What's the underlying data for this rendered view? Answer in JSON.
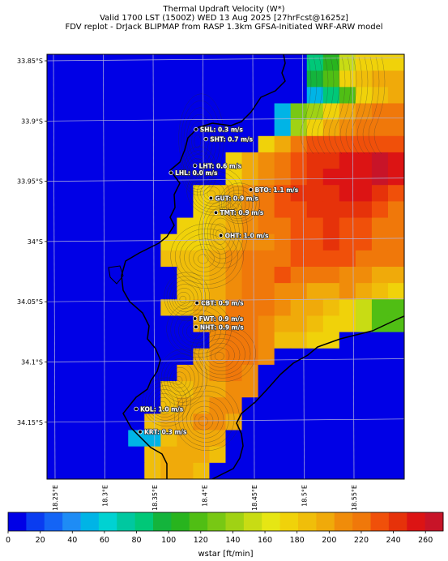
{
  "title": {
    "line1": "Thermal Updraft Velocity (W*)",
    "line2": "Valid 1700 LST (1500Z) WED 13 Aug 2025 [27hrFcst@1625z]",
    "line3": "FDV replot - DrJack BLIPMAP from RASP 1.3km GFSA-Initiated WRF-ARW model"
  },
  "lat_labels": [
    "33.85°S",
    "33.9°S",
    "33.95°S",
    "34°S",
    "34.05°S",
    "34.1°S",
    "34.15°S"
  ],
  "lon_labels": [
    "18.25°E",
    "18.3°E",
    "18.35°E",
    "18.4°E",
    "18.45°E",
    "18.5°E",
    "18.55°E"
  ],
  "stations": [
    {
      "id": "SHL",
      "label": "SHL: 0.3 m/s",
      "lat": -33.907,
      "lon": 18.393
    },
    {
      "id": "SHT",
      "label": "SHT: 0.7 m/s",
      "lat": -33.915,
      "lon": 18.403
    },
    {
      "id": "LHT",
      "label": "LHT: 0.6 m/s",
      "lat": -33.937,
      "lon": 18.392
    },
    {
      "id": "LHL",
      "label": "LHL: 0.0 m/s",
      "lat": -33.943,
      "lon": 18.368
    },
    {
      "id": "BTO",
      "label": "BTO: 1.1 m/s",
      "lat": -33.957,
      "lon": 18.448
    },
    {
      "id": "GUT",
      "label": "GUT: 0.9 m/s",
      "lat": -33.964,
      "lon": 18.408
    },
    {
      "id": "TMT",
      "label": "TMT: 0.9 m/s",
      "lat": -33.976,
      "lon": 18.413
    },
    {
      "id": "OHT",
      "label": "OHT: 1.0 m/s",
      "lat": -33.995,
      "lon": 18.418
    },
    {
      "id": "CBT",
      "label": "CBT: 0.9 m/s",
      "lat": -34.051,
      "lon": 18.394
    },
    {
      "id": "FWT",
      "label": "FWT: 0.9 m/s",
      "lat": -34.064,
      "lon": 18.392
    },
    {
      "id": "NHT",
      "label": "NHT: 0.9 m/s",
      "lat": -34.071,
      "lon": 18.393
    },
    {
      "id": "KOL",
      "label": "KOL: 1.0 m/s",
      "lat": -34.139,
      "lon": 18.333
    },
    {
      "id": "KRT",
      "label": "KRT: 0.3 m/s",
      "lat": -34.158,
      "lon": 18.337
    }
  ],
  "colorbar": {
    "label": "wstar [ft/min]",
    "ticks": [
      "0",
      "20",
      "40",
      "60",
      "80",
      "100",
      "120",
      "140",
      "160",
      "180",
      "200",
      "220",
      "240",
      "260"
    ],
    "colors": [
      "#0000e6",
      "#0a3cf0",
      "#1464f5",
      "#1e8cf5",
      "#00b4e6",
      "#00d2d2",
      "#00c8a0",
      "#00c878",
      "#14b43c",
      "#28b41e",
      "#50be14",
      "#78c814",
      "#a0d214",
      "#c8dc14",
      "#e6e614",
      "#f0d20a",
      "#f0be0a",
      "#f0aa0a",
      "#f08c0a",
      "#f0780a",
      "#f0500a",
      "#e6320a",
      "#dc1414",
      "#c81428"
    ]
  },
  "field": {
    "rows": 26,
    "cols": 22,
    "grid": [
      "0000000000000000HJNPPP",
      "0000000000000000IKPQRR",
      "00000000000000004HKPQR",
      "000000000000004LMPRSTT",
      "000000000000004MPRSTTT",
      "0000000000000PRTUUUUUU",
      "00000000000PRSTUVVWWXW",
      "00000000000PRSTUVWWWXW",
      "000000000PQRSTUVVVWWVU",
      "000000000PQRSTUUVVVVUT",
      "00000000PPQRSTTUUVUUTT",
      "0000000PPPQRSSTUUVUUTT",
      "0000000QQQRSTTTUUUUTTT",
      "00000000QQRSTTUTTTSSRR",
      "00000000QQRSTTSSRRSRQP",
      "0000000QQRRTTTSRRQPNKK",
      "000000000RSTTSRRQPPNKK",
      "0000000000STTSQQPP0000",
      "000000000RSTTS00000000",
      "00000000RRSTS000000000",
      "0000000QQRRSS000000000",
      "0000000QRRSS0000000000",
      "000000QRRSSR0000000000",
      "0000044QRRR00000000000",
      "000000QRRRQ00000000000",
      "000000QRRQ000000000000"
    ]
  }
}
